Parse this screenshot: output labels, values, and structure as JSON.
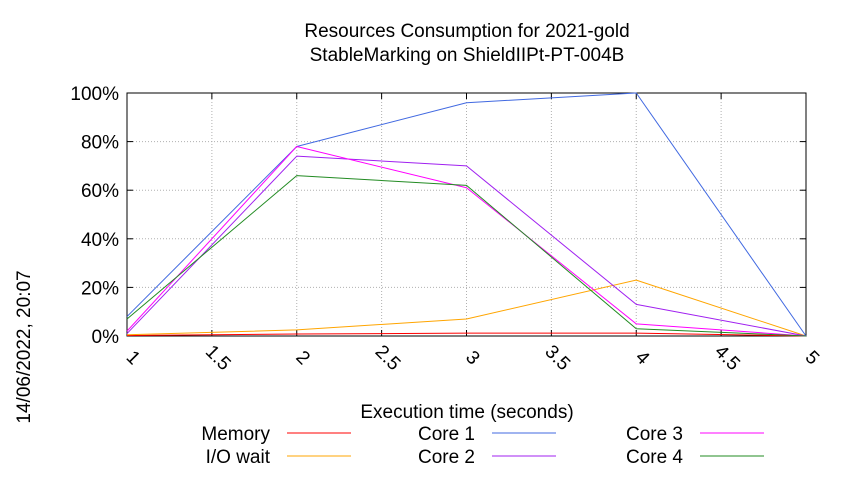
{
  "chart_data": {
    "type": "line",
    "title_lines": [
      "Resources Consumption for 2021-gold",
      "StableMarking on ShieldIIPt-PT-004B"
    ],
    "xlabel": "Execution time (seconds)",
    "ylabel": "",
    "xlim": [
      1,
      5
    ],
    "ylim": [
      0,
      100
    ],
    "grid": true,
    "legend_position": "bottom",
    "side_label": "14/06/2022, 20:07",
    "x_ticks": [
      {
        "v": 1,
        "label": "1"
      },
      {
        "v": 1.5,
        "label": "1.5"
      },
      {
        "v": 2,
        "label": "2"
      },
      {
        "v": 2.5,
        "label": "2.5"
      },
      {
        "v": 3,
        "label": "3"
      },
      {
        "v": 3.5,
        "label": "3.5"
      },
      {
        "v": 4,
        "label": "4"
      },
      {
        "v": 4.5,
        "label": "4.5"
      },
      {
        "v": 5,
        "label": "5"
      }
    ],
    "y_ticks": [
      {
        "v": 0,
        "label": "0%"
      },
      {
        "v": 20,
        "label": "20%"
      },
      {
        "v": 40,
        "label": "40%"
      },
      {
        "v": 60,
        "label": "60%"
      },
      {
        "v": 80,
        "label": "80%"
      },
      {
        "v": 100,
        "label": "100%"
      }
    ],
    "x": [
      1,
      2,
      3,
      4,
      5
    ],
    "series": [
      {
        "name": "Memory",
        "color": "#ff0000",
        "values": [
          0.2,
          0.8,
          1.2,
          1.2,
          0
        ]
      },
      {
        "name": "I/O wait",
        "color": "#ffa500",
        "values": [
          0.5,
          2.5,
          7,
          23,
          0
        ]
      },
      {
        "name": "Core 1",
        "color": "#4169e1",
        "values": [
          8,
          78,
          96,
          100,
          0
        ]
      },
      {
        "name": "Core 2",
        "color": "#a020f0",
        "values": [
          1,
          74,
          70,
          13,
          0
        ]
      },
      {
        "name": "Core 3",
        "color": "#ff00ff",
        "values": [
          2,
          78,
          61,
          5,
          0
        ]
      },
      {
        "name": "Core 4",
        "color": "#228b22",
        "values": [
          7,
          66,
          62,
          3,
          0
        ]
      }
    ]
  }
}
